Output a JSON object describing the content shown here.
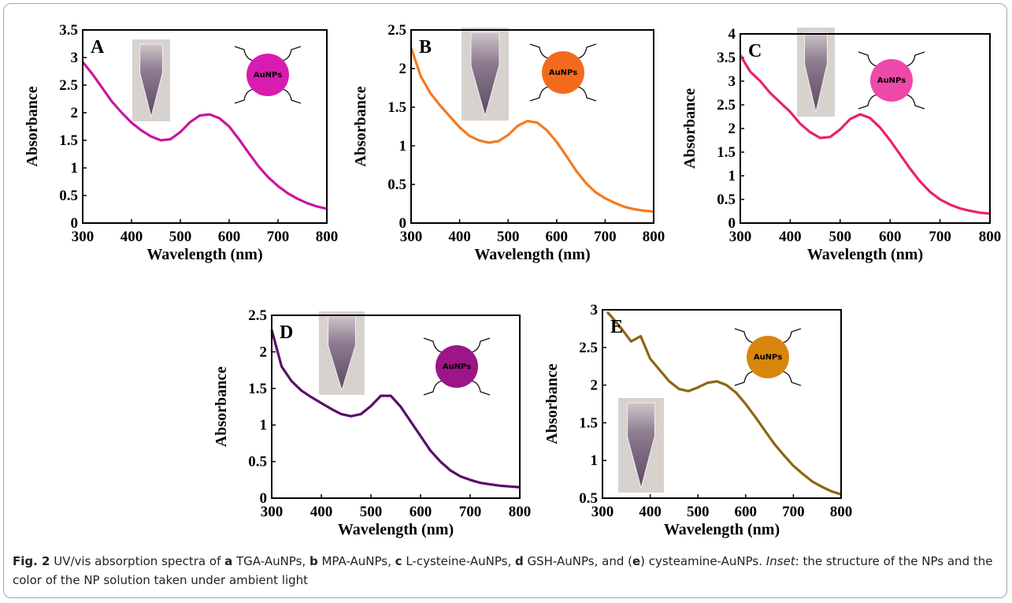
{
  "chart_data": [
    {
      "type": "line",
      "panel": "A",
      "xlabel": "Wavelength (nm)",
      "ylabel": "Absorbance",
      "color": "#c8189e",
      "inset_label": "AuNPs",
      "inset_color": "#d81cb0",
      "x": [
        300,
        320,
        340,
        360,
        380,
        400,
        420,
        440,
        460,
        480,
        500,
        520,
        540,
        560,
        580,
        600,
        620,
        640,
        660,
        680,
        700,
        720,
        740,
        760,
        780,
        800
      ],
      "values": [
        2.92,
        2.7,
        2.45,
        2.2,
        2.0,
        1.82,
        1.68,
        1.57,
        1.5,
        1.52,
        1.65,
        1.83,
        1.95,
        1.97,
        1.9,
        1.75,
        1.52,
        1.27,
        1.03,
        0.83,
        0.67,
        0.54,
        0.44,
        0.36,
        0.3,
        0.26
      ],
      "xlim": [
        300,
        800
      ],
      "xticks": [
        300,
        400,
        500,
        600,
        700,
        800
      ],
      "ylim": [
        0,
        3.5
      ],
      "yticks": [
        0,
        0.5,
        1,
        1.5,
        2,
        2.5,
        3,
        3.5
      ]
    },
    {
      "type": "line",
      "panel": "B",
      "xlabel": "Wavelength (nm)",
      "ylabel": "Absorbance",
      "color": "#f47a1f",
      "inset_label": "AuNPs",
      "inset_color": "#f26b1d",
      "x": [
        300,
        320,
        340,
        360,
        380,
        400,
        420,
        440,
        460,
        480,
        500,
        520,
        540,
        560,
        580,
        600,
        620,
        640,
        660,
        680,
        700,
        720,
        740,
        760,
        780,
        800
      ],
      "values": [
        2.27,
        1.9,
        1.68,
        1.52,
        1.38,
        1.24,
        1.13,
        1.07,
        1.04,
        1.06,
        1.14,
        1.26,
        1.32,
        1.3,
        1.2,
        1.05,
        0.87,
        0.68,
        0.52,
        0.4,
        0.32,
        0.26,
        0.21,
        0.18,
        0.16,
        0.15
      ],
      "xlim": [
        300,
        800
      ],
      "xticks": [
        300,
        400,
        500,
        600,
        700,
        800
      ],
      "ylim": [
        0,
        2.5
      ],
      "yticks": [
        0,
        0.5,
        1,
        1.5,
        2,
        2.5
      ]
    },
    {
      "type": "line",
      "panel": "C",
      "xlabel": "Wavelength (nm)",
      "ylabel": "Absorbance",
      "color": "#ee1f6f",
      "inset_label": "AuNPs",
      "inset_color": "#ee48a8",
      "x": [
        300,
        320,
        340,
        360,
        380,
        400,
        420,
        440,
        460,
        480,
        500,
        520,
        540,
        560,
        580,
        600,
        620,
        640,
        660,
        680,
        700,
        720,
        740,
        760,
        780,
        800
      ],
      "values": [
        3.55,
        3.2,
        3.0,
        2.75,
        2.55,
        2.35,
        2.1,
        1.92,
        1.8,
        1.82,
        1.98,
        2.2,
        2.3,
        2.22,
        2.02,
        1.75,
        1.45,
        1.15,
        0.88,
        0.66,
        0.5,
        0.39,
        0.31,
        0.26,
        0.22,
        0.2
      ],
      "xlim": [
        300,
        800
      ],
      "xticks": [
        300,
        400,
        500,
        600,
        700,
        800
      ],
      "ylim": [
        0,
        4
      ],
      "yticks": [
        0,
        0.5,
        1,
        1.5,
        2,
        2.5,
        3,
        3.5,
        4
      ]
    },
    {
      "type": "line",
      "panel": "D",
      "xlabel": "Wavelength (nm)",
      "ylabel": "Absorbance",
      "color": "#5a0f6b",
      "inset_label": "AuNPs",
      "inset_color": "#9c1688",
      "x": [
        300,
        320,
        340,
        360,
        380,
        400,
        420,
        440,
        460,
        480,
        500,
        520,
        540,
        560,
        580,
        600,
        620,
        640,
        660,
        680,
        700,
        720,
        740,
        760,
        780,
        800
      ],
      "values": [
        2.3,
        1.8,
        1.6,
        1.47,
        1.38,
        1.3,
        1.22,
        1.15,
        1.12,
        1.15,
        1.26,
        1.4,
        1.4,
        1.25,
        1.05,
        0.85,
        0.65,
        0.5,
        0.38,
        0.3,
        0.25,
        0.21,
        0.19,
        0.17,
        0.16,
        0.15
      ],
      "xlim": [
        300,
        800
      ],
      "xticks": [
        300,
        400,
        500,
        600,
        700,
        800
      ],
      "ylim": [
        0,
        2.5
      ],
      "yticks": [
        0,
        0.5,
        1,
        1.5,
        2,
        2.5
      ]
    },
    {
      "type": "line",
      "panel": "E",
      "xlabel": "Wavelength (nm)",
      "ylabel": "Absorbance",
      "color": "#8f6412",
      "inset_label": "AuNPs",
      "inset_color": "#d9860f",
      "x": [
        310,
        320,
        340,
        360,
        380,
        400,
        420,
        440,
        460,
        480,
        500,
        520,
        540,
        560,
        580,
        600,
        620,
        640,
        660,
        680,
        700,
        720,
        740,
        760,
        780,
        800
      ],
      "values": [
        2.97,
        2.9,
        2.75,
        2.58,
        2.65,
        2.35,
        2.2,
        2.05,
        1.95,
        1.92,
        1.97,
        2.03,
        2.05,
        2.0,
        1.9,
        1.75,
        1.58,
        1.4,
        1.22,
        1.07,
        0.93,
        0.82,
        0.72,
        0.65,
        0.59,
        0.55
      ],
      "xlim": [
        300,
        800
      ],
      "xticks": [
        300,
        400,
        500,
        600,
        700,
        800
      ],
      "ylim": [
        0.5,
        3
      ],
      "yticks": [
        0.5,
        1,
        1.5,
        2,
        2.5,
        3
      ]
    }
  ],
  "caption": [
    {
      "text": "Fig. 2",
      "style": "bold"
    },
    {
      "text": " UV/vis absorption spectra of ",
      "style": "normal"
    },
    {
      "text": "a",
      "style": "bold"
    },
    {
      "text": " TGA-AuNPs, ",
      "style": "normal"
    },
    {
      "text": "b",
      "style": "bold"
    },
    {
      "text": " MPA-AuNPs, ",
      "style": "normal"
    },
    {
      "text": "c",
      "style": "bold"
    },
    {
      "text": " L-cysteine-AuNPs, ",
      "style": "normal"
    },
    {
      "text": "d",
      "style": "bold"
    },
    {
      "text": " GSH-AuNPs, and (",
      "style": "normal"
    },
    {
      "text": "e",
      "style": "bold"
    },
    {
      "text": ") cysteamine-AuNPs. ",
      "style": "normal"
    },
    {
      "text": "Inset",
      "style": "italic"
    },
    {
      "text": ": the structure of the NPs and the color of the NP solution taken under ambient light",
      "style": "normal"
    }
  ]
}
